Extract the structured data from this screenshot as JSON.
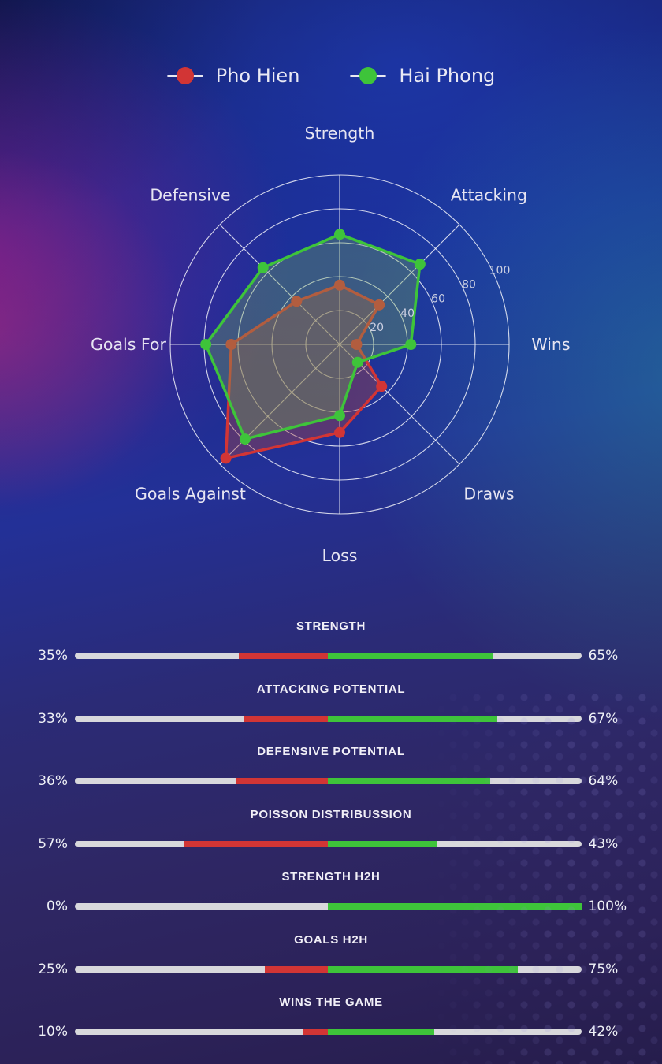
{
  "legend": {
    "items": [
      {
        "label": "Pho Hien",
        "color": "#d23535"
      },
      {
        "label": "Hai Phong",
        "color": "#3ec43a"
      }
    ]
  },
  "chart_data": [
    {
      "type": "radar",
      "categories": [
        "Strength",
        "Attacking",
        "Wins",
        "Draws",
        "Loss",
        "Goals Against",
        "Goals For",
        "Defensive"
      ],
      "series": [
        {
          "name": "Pho Hien",
          "color": "#d23535",
          "fill": "rgba(175,68,60,0.38)",
          "values": [
            35,
            33,
            10,
            35,
            52,
            95,
            64,
            36
          ]
        },
        {
          "name": "Hai Phong",
          "color": "#3ec43a",
          "fill": "rgba(118,172,84,0.34)",
          "values": [
            65,
            67,
            42,
            15,
            42,
            79,
            79,
            64
          ]
        }
      ],
      "ticks": [
        20,
        40,
        60,
        80,
        100
      ],
      "max": 100,
      "grid": true,
      "legend_position": "top"
    },
    {
      "type": "bar",
      "rows": [
        {
          "title": "STRENGTH",
          "left_label": "35%",
          "right_label": "65%",
          "left_value": 35,
          "right_value": 65
        },
        {
          "title": "ATTACKING POTENTIAL",
          "left_label": "33%",
          "right_label": "67%",
          "left_value": 33,
          "right_value": 67
        },
        {
          "title": "DEFENSIVE POTENTIAL",
          "left_label": "36%",
          "right_label": "64%",
          "left_value": 36,
          "right_value": 64
        },
        {
          "title": "POISSON DISTRIBUSSION",
          "left_label": "57%",
          "right_label": "43%",
          "left_value": 57,
          "right_value": 43
        },
        {
          "title": "STRENGTH H2H",
          "left_label": "0%",
          "right_label": "100%",
          "left_value": 0,
          "right_value": 100
        },
        {
          "title": "GOALS H2H",
          "left_label": "25%",
          "right_label": "75%",
          "left_value": 25,
          "right_value": 75
        },
        {
          "title": "WINS THE GAME",
          "left_label": "10%",
          "right_label": "42%",
          "left_value": 10,
          "right_value": 42
        }
      ],
      "left_color": "#d23535",
      "right_color": "#3ec43a",
      "track_color": "#d8d8dc"
    }
  ]
}
